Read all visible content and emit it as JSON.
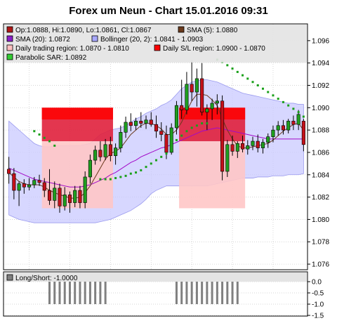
{
  "title": "Forex um Neun - Chart 15.01.2016 09:31",
  "colors": {
    "bull": "#1f9e1f",
    "bear": "#c4101a",
    "sma5": "#6b3a1c",
    "sma20": "#a20ac8",
    "bollinger_fill": "#c9c9ff",
    "bollinger_edge": "#9a9aee",
    "region_main": "#e0203c",
    "region_light": "#ffc6c6",
    "region_top": "#ff0000",
    "sar": "#1aa01a",
    "longshort_bar": "#808080"
  },
  "legend": [
    {
      "label": "Op:1.0888, Hi:1.0890, Lo:1.0861, Cl:1.0867",
      "swatch": "#b01818"
    },
    {
      "label": "SMA (5): 1.0880",
      "swatch": "#6b3a1c"
    },
    {
      "label": "SMA (20): 1.0872",
      "swatch": "#8a1fc9"
    },
    {
      "label": "Bollinger (20, 2): 1.0841 - 1.0903",
      "swatch": "#a9a9ff"
    },
    {
      "label": "Daily trading region: 1.0870 - 1.0810",
      "swatch": "#ffc0c0"
    },
    {
      "label": "Daily S/L region: 1.0900 - 1.0870",
      "swatch": "#ff0000"
    },
    {
      "label": "Parabolic SAR: 1.0892",
      "swatch": "#33cc33"
    }
  ],
  "longshort_label": "Long/Short: -1.0000",
  "chart_data": {
    "type": "candlestick",
    "title": "Forex um Neun - Chart 15.01.2016 09:31",
    "ylim": [
      1.0755,
      1.0975
    ],
    "y_ticks": [
      "1.076",
      "1.078",
      "1.080",
      "1.082",
      "1.084",
      "1.086",
      "1.088",
      "1.090",
      "1.092",
      "1.094",
      "1.096"
    ],
    "candles": [
      {
        "o": 1.0845,
        "h": 1.0856,
        "l": 1.0832,
        "c": 1.0841
      },
      {
        "o": 1.0841,
        "h": 1.0846,
        "l": 1.0818,
        "c": 1.0826
      },
      {
        "o": 1.0826,
        "h": 1.0834,
        "l": 1.0812,
        "c": 1.0832
      },
      {
        "o": 1.0832,
        "h": 1.0836,
        "l": 1.0823,
        "c": 1.0829
      },
      {
        "o": 1.0829,
        "h": 1.0837,
        "l": 1.0826,
        "c": 1.0831
      },
      {
        "o": 1.0831,
        "h": 1.0838,
        "l": 1.0828,
        "c": 1.0835
      },
      {
        "o": 1.0835,
        "h": 1.084,
        "l": 1.083,
        "c": 1.0833
      },
      {
        "o": 1.0833,
        "h": 1.0837,
        "l": 1.082,
        "c": 1.0826
      },
      {
        "o": 1.0826,
        "h": 1.0845,
        "l": 1.0813,
        "c": 1.0817
      },
      {
        "o": 1.0817,
        "h": 1.0834,
        "l": 1.081,
        "c": 1.0828
      },
      {
        "o": 1.0828,
        "h": 1.0832,
        "l": 1.0806,
        "c": 1.0812
      },
      {
        "o": 1.0812,
        "h": 1.0829,
        "l": 1.0808,
        "c": 1.0822
      },
      {
        "o": 1.0822,
        "h": 1.0825,
        "l": 1.0806,
        "c": 1.0815
      },
      {
        "o": 1.0815,
        "h": 1.083,
        "l": 1.0811,
        "c": 1.0826
      },
      {
        "o": 1.0826,
        "h": 1.083,
        "l": 1.081,
        "c": 1.0815
      },
      {
        "o": 1.0815,
        "h": 1.0843,
        "l": 1.081,
        "c": 1.0838
      },
      {
        "o": 1.0838,
        "h": 1.0858,
        "l": 1.0832,
        "c": 1.0853
      },
      {
        "o": 1.0853,
        "h": 1.0866,
        "l": 1.0849,
        "c": 1.0862
      },
      {
        "o": 1.0862,
        "h": 1.087,
        "l": 1.0852,
        "c": 1.0856
      },
      {
        "o": 1.0856,
        "h": 1.0872,
        "l": 1.0853,
        "c": 1.0867
      },
      {
        "o": 1.0867,
        "h": 1.0874,
        "l": 1.0852,
        "c": 1.0857
      },
      {
        "o": 1.0857,
        "h": 1.0868,
        "l": 1.0849,
        "c": 1.0864
      },
      {
        "o": 1.0864,
        "h": 1.0884,
        "l": 1.086,
        "c": 1.0878
      },
      {
        "o": 1.0878,
        "h": 1.0892,
        "l": 1.0873,
        "c": 1.0887
      },
      {
        "o": 1.0887,
        "h": 1.0895,
        "l": 1.0879,
        "c": 1.0884
      },
      {
        "o": 1.0884,
        "h": 1.0891,
        "l": 1.088,
        "c": 1.0888
      },
      {
        "o": 1.0888,
        "h": 1.0896,
        "l": 1.0882,
        "c": 1.0886
      },
      {
        "o": 1.0886,
        "h": 1.0893,
        "l": 1.0881,
        "c": 1.0889
      },
      {
        "o": 1.0889,
        "h": 1.0896,
        "l": 1.0883,
        "c": 1.0885
      },
      {
        "o": 1.0885,
        "h": 1.0893,
        "l": 1.0873,
        "c": 1.0879
      },
      {
        "o": 1.0879,
        "h": 1.0887,
        "l": 1.087,
        "c": 1.0876
      },
      {
        "o": 1.0876,
        "h": 1.0884,
        "l": 1.0854,
        "c": 1.086
      },
      {
        "o": 1.086,
        "h": 1.0886,
        "l": 1.0858,
        "c": 1.0882
      },
      {
        "o": 1.0882,
        "h": 1.0906,
        "l": 1.0876,
        "c": 1.0902
      },
      {
        "o": 1.0902,
        "h": 1.0925,
        "l": 1.089,
        "c": 1.0898
      },
      {
        "o": 1.0898,
        "h": 1.0932,
        "l": 1.0894,
        "c": 1.0921
      },
      {
        "o": 1.0921,
        "h": 1.0942,
        "l": 1.0906,
        "c": 1.0914
      },
      {
        "o": 1.0914,
        "h": 1.0935,
        "l": 1.0901,
        "c": 1.0926
      },
      {
        "o": 1.0926,
        "h": 1.094,
        "l": 1.0893,
        "c": 1.0896
      },
      {
        "o": 1.0896,
        "h": 1.0903,
        "l": 1.088,
        "c": 1.0899
      },
      {
        "o": 1.0899,
        "h": 1.0908,
        "l": 1.0889,
        "c": 1.0904
      },
      {
        "o": 1.0904,
        "h": 1.0912,
        "l": 1.0894,
        "c": 1.0906
      },
      {
        "o": 1.0906,
        "h": 1.0911,
        "l": 1.0835,
        "c": 1.0843
      },
      {
        "o": 1.0843,
        "h": 1.0871,
        "l": 1.0838,
        "c": 1.0867
      },
      {
        "o": 1.0867,
        "h": 1.0875,
        "l": 1.0857,
        "c": 1.0861
      },
      {
        "o": 1.0861,
        "h": 1.087,
        "l": 1.0855,
        "c": 1.0868
      },
      {
        "o": 1.0868,
        "h": 1.0875,
        "l": 1.086,
        "c": 1.0863
      },
      {
        "o": 1.0863,
        "h": 1.0871,
        "l": 1.0858,
        "c": 1.0866
      },
      {
        "o": 1.0866,
        "h": 1.0874,
        "l": 1.0862,
        "c": 1.087
      },
      {
        "o": 1.087,
        "h": 1.0876,
        "l": 1.086,
        "c": 1.0864
      },
      {
        "o": 1.0864,
        "h": 1.0872,
        "l": 1.0859,
        "c": 1.0869
      },
      {
        "o": 1.0869,
        "h": 1.0877,
        "l": 1.0864,
        "c": 1.0874
      },
      {
        "o": 1.0874,
        "h": 1.0884,
        "l": 1.0869,
        "c": 1.088
      },
      {
        "o": 1.088,
        "h": 1.0888,
        "l": 1.0875,
        "c": 1.0884
      },
      {
        "o": 1.0884,
        "h": 1.0889,
        "l": 1.0876,
        "c": 1.088
      },
      {
        "o": 1.088,
        "h": 1.089,
        "l": 1.0877,
        "c": 1.0888
      },
      {
        "o": 1.0888,
        "h": 1.0893,
        "l": 1.088,
        "c": 1.0885
      },
      {
        "o": 1.0885,
        "h": 1.0898,
        "l": 1.088,
        "c": 1.0894
      },
      {
        "o": 1.0888,
        "h": 1.089,
        "l": 1.0861,
        "c": 1.0867
      }
    ],
    "sma5": [
      1.0842,
      1.0838,
      1.0834,
      1.0832,
      1.0831,
      1.0831,
      1.0831,
      1.0829,
      1.0826,
      1.0824,
      1.0822,
      1.0821,
      1.0819,
      1.0819,
      1.082,
      1.0824,
      1.083,
      1.0838,
      1.0846,
      1.0854,
      1.0859,
      1.0861,
      1.0864,
      1.087,
      1.0876,
      1.088,
      1.0884,
      1.0886,
      1.0886,
      1.0884,
      1.0881,
      1.0876,
      1.0876,
      1.088,
      1.0887,
      1.0897,
      1.0906,
      1.0912,
      1.0912,
      1.0911,
      1.0907,
      1.0902,
      1.089,
      1.088,
      1.0872,
      1.0866,
      1.0864,
      1.0864,
      1.0865,
      1.0866,
      1.0867,
      1.0868,
      1.0871,
      1.0875,
      1.0879,
      1.0882,
      1.0885,
      1.0886,
      1.088
    ],
    "sma20": [
      1.0846,
      1.0844,
      1.0842,
      1.084,
      1.0838,
      1.0836,
      1.0835,
      1.0834,
      1.0833,
      1.0832,
      1.0831,
      1.083,
      1.0829,
      1.0829,
      1.0829,
      1.083,
      1.0831,
      1.0833,
      1.0835,
      1.0837,
      1.084,
      1.0842,
      1.0845,
      1.0848,
      1.0851,
      1.0853,
      1.0856,
      1.0858,
      1.086,
      1.0862,
      1.0864,
      1.0865,
      1.0867,
      1.0869,
      1.0871,
      1.0873,
      1.0875,
      1.0877,
      1.0879,
      1.088,
      1.0881,
      1.0882,
      1.0881,
      1.088,
      1.0879,
      1.0878,
      1.0877,
      1.0876,
      1.0875,
      1.0874,
      1.0873,
      1.0872,
      1.0872,
      1.0872,
      1.0872,
      1.0872,
      1.0872,
      1.0872,
      1.0872
    ],
    "bollinger_upper": [
      1.0888,
      1.0884,
      1.088,
      1.0876,
      1.0872,
      1.0868,
      1.0866,
      1.0865,
      1.0865,
      1.0866,
      1.0866,
      1.0866,
      1.0866,
      1.0866,
      1.0866,
      1.0867,
      1.0868,
      1.0872,
      1.0876,
      1.0878,
      1.088,
      1.0881,
      1.0882,
      1.0884,
      1.0887,
      1.089,
      1.0892,
      1.0895,
      1.0897,
      1.0899,
      1.0902,
      1.0904,
      1.0907,
      1.0912,
      1.0917,
      1.092,
      1.0923,
      1.0924,
      1.0925,
      1.0925,
      1.0924,
      1.0923,
      1.0921,
      1.0919,
      1.0917,
      1.0915,
      1.0913,
      1.0912,
      1.0911,
      1.091,
      1.0909,
      1.0908,
      1.0907,
      1.0906,
      1.0905,
      1.0904,
      1.0904,
      1.0903,
      1.0903
    ],
    "bollinger_lower": [
      1.0804,
      1.0802,
      1.08,
      1.0799,
      1.0798,
      1.0797,
      1.0797,
      1.0797,
      1.0797,
      1.0797,
      1.0797,
      1.0797,
      1.0797,
      1.0797,
      1.0797,
      1.0797,
      1.0797,
      1.0797,
      1.0798,
      1.0799,
      1.08,
      1.0802,
      1.0804,
      1.0806,
      1.0808,
      1.0811,
      1.0814,
      1.0818,
      1.0823,
      1.0826,
      1.0828,
      1.083,
      1.083,
      1.083,
      1.083,
      1.083,
      1.083,
      1.083,
      1.083,
      1.083,
      1.0831,
      1.0832,
      1.0833,
      1.0834,
      1.0835,
      1.0836,
      1.0837,
      1.0837,
      1.0837,
      1.0838,
      1.0838,
      1.0838,
      1.0839,
      1.0839,
      1.0839,
      1.084,
      1.084,
      1.084,
      1.0841
    ],
    "sar": [
      {
        "i": 5,
        "v": 1.0879
      },
      {
        "i": 6,
        "v": 1.0876
      },
      {
        "i": 7,
        "v": 1.0873
      },
      {
        "i": 8,
        "v": 1.087
      },
      {
        "i": 9,
        "v": 1.0866
      },
      {
        "i": 18,
        "v": 1.0836
      },
      {
        "i": 19,
        "v": 1.0836
      },
      {
        "i": 20,
        "v": 1.0836
      },
      {
        "i": 21,
        "v": 1.0837
      },
      {
        "i": 22,
        "v": 1.0838
      },
      {
        "i": 23,
        "v": 1.0839
      },
      {
        "i": 24,
        "v": 1.0841
      },
      {
        "i": 25,
        "v": 1.0842
      },
      {
        "i": 26,
        "v": 1.0844
      },
      {
        "i": 27,
        "v": 1.0847
      },
      {
        "i": 28,
        "v": 1.085
      },
      {
        "i": 29,
        "v": 1.0853
      },
      {
        "i": 30,
        "v": 1.0856
      },
      {
        "i": 31,
        "v": 1.0859
      },
      {
        "i": 32,
        "v": 1.0866
      },
      {
        "i": 33,
        "v": 1.0871
      },
      {
        "i": 34,
        "v": 1.0875
      },
      {
        "i": 35,
        "v": 1.0879
      },
      {
        "i": 36,
        "v": 1.0882
      },
      {
        "i": 37,
        "v": 1.0884
      },
      {
        "i": 38,
        "v": 1.0886
      },
      {
        "i": 39,
        "v": 1.0886
      },
      {
        "i": 41,
        "v": 1.0943
      },
      {
        "i": 42,
        "v": 1.0941
      },
      {
        "i": 43,
        "v": 1.0938
      },
      {
        "i": 44,
        "v": 1.0935
      },
      {
        "i": 45,
        "v": 1.0932
      },
      {
        "i": 46,
        "v": 1.0929
      },
      {
        "i": 47,
        "v": 1.0926
      },
      {
        "i": 48,
        "v": 1.0923
      },
      {
        "i": 49,
        "v": 1.092
      },
      {
        "i": 50,
        "v": 1.0917
      },
      {
        "i": 51,
        "v": 1.0914
      },
      {
        "i": 52,
        "v": 1.0911
      },
      {
        "i": 53,
        "v": 1.0908
      },
      {
        "i": 54,
        "v": 1.0905
      },
      {
        "i": 55,
        "v": 1.0902
      },
      {
        "i": 56,
        "v": 1.0899
      },
      {
        "i": 57,
        "v": 1.0896
      },
      {
        "i": 58,
        "v": 1.0892
      }
    ],
    "regions": [
      {
        "i0": 7,
        "i1": 20,
        "trading": [
          1.081,
          1.087
        ],
        "sl": [
          1.087,
          1.09
        ]
      },
      {
        "i0": 34,
        "i1": 46,
        "trading": [
          1.081,
          1.087
        ],
        "sl": [
          1.087,
          1.09
        ]
      }
    ],
    "longshort": {
      "label": "Long/Short: -1.0000",
      "ylim": [
        -1.5,
        0.0
      ],
      "y_ticks": [
        "0.0",
        "-0.5",
        "-1.0",
        "-1.5"
      ],
      "bars": [
        {
          "i": 8,
          "v": -1.0
        },
        {
          "i": 9,
          "v": -1.0
        },
        {
          "i": 10,
          "v": -1.0
        },
        {
          "i": 11,
          "v": -1.0
        },
        {
          "i": 12,
          "v": -1.0
        },
        {
          "i": 13,
          "v": -1.0
        },
        {
          "i": 14,
          "v": -1.0
        },
        {
          "i": 15,
          "v": -1.0
        },
        {
          "i": 16,
          "v": -1.0
        },
        {
          "i": 17,
          "v": -1.0
        },
        {
          "i": 18,
          "v": -1.0
        },
        {
          "i": 19,
          "v": -1.0
        },
        {
          "i": 33,
          "v": -1.0
        },
        {
          "i": 34,
          "v": -1.0
        },
        {
          "i": 35,
          "v": -1.0
        },
        {
          "i": 36,
          "v": -1.0
        },
        {
          "i": 37,
          "v": -1.0
        },
        {
          "i": 38,
          "v": -1.0
        },
        {
          "i": 39,
          "v": -1.0
        },
        {
          "i": 40,
          "v": -1.0
        },
        {
          "i": 41,
          "v": -1.0
        },
        {
          "i": 42,
          "v": -1.0
        },
        {
          "i": 43,
          "v": -1.0
        },
        {
          "i": 44,
          "v": -1.0
        },
        {
          "i": 45,
          "v": -1.0
        }
      ]
    }
  }
}
